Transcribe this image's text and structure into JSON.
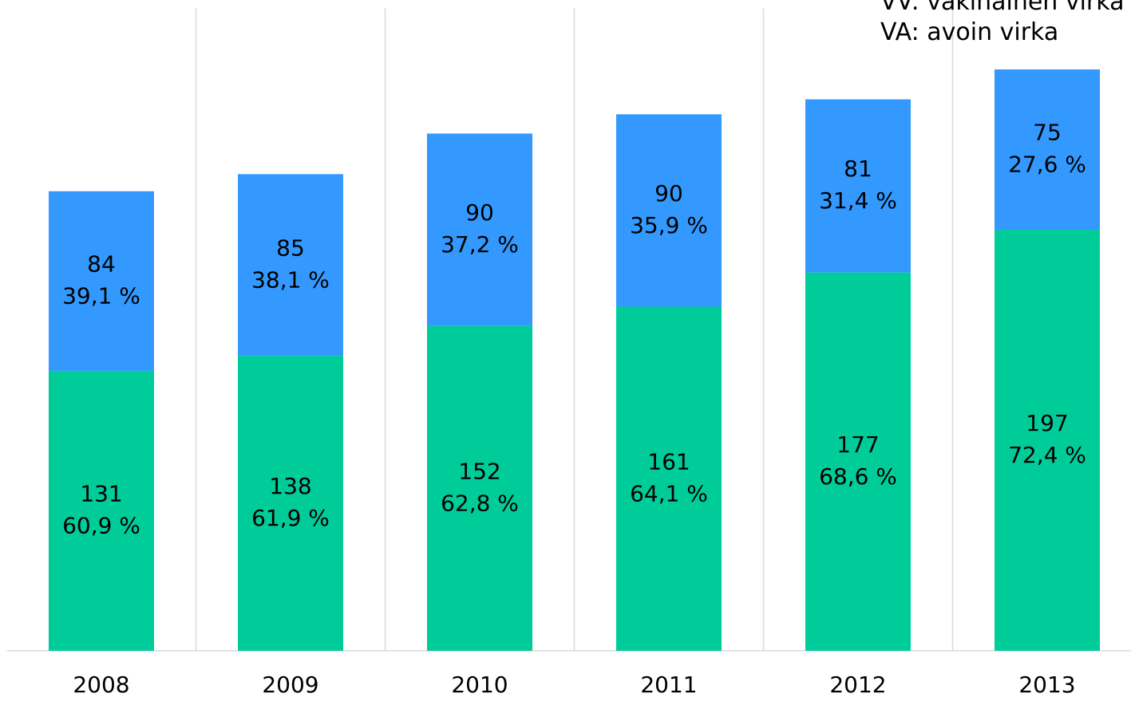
{
  "chart_data": {
    "type": "stacked_bar",
    "categories": [
      "2008",
      "2009",
      "2010",
      "2011",
      "2012",
      "2013"
    ],
    "series": [
      {
        "color": "#00cc99",
        "values": [
          131,
          138,
          152,
          161,
          177,
          197
        ],
        "share_labels": [
          "60,9 %",
          "61,9 %",
          "62,8 %",
          "64,1 %",
          "68,6 %",
          "72,4 %"
        ]
      },
      {
        "color": "#3399ff",
        "values": [
          84,
          85,
          90,
          90,
          81,
          75
        ],
        "share_labels": [
          "39,1 %",
          "38,1 %",
          "37,2 %",
          "35,9 %",
          "31,4 %",
          "27,6 %"
        ]
      }
    ],
    "annotations": [
      "VV: vakinainen virka",
      "VA: avoin virka"
    ],
    "ylim": [
      0,
      300
    ]
  }
}
